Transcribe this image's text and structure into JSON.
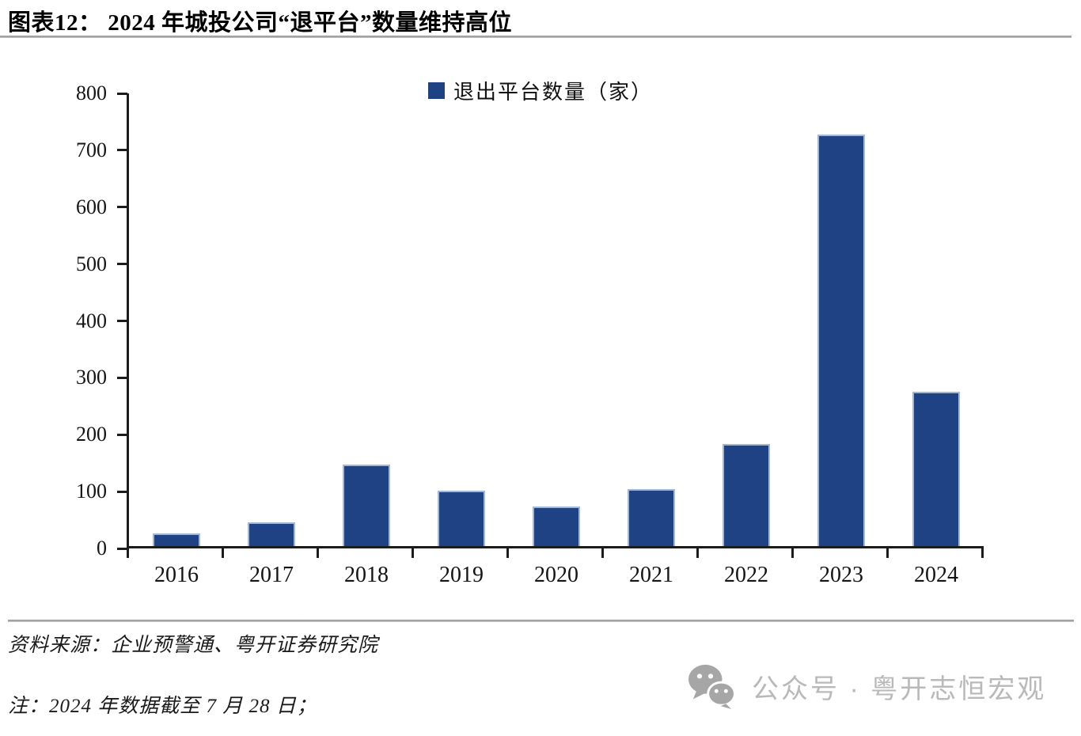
{
  "page": {
    "title": "图表12： 2024 年城投公司“退平台”数量维持高位",
    "source_line": "资料来源：企业预警通、粤开证券研究院",
    "note_line": "注：2024 年数据截至 7 月 28 日；",
    "watermark": {
      "icon": "wechat-icon",
      "text": "公众号 · 粤开志恒宏观"
    }
  },
  "chart_data": {
    "type": "bar",
    "title": "",
    "xlabel": "",
    "ylabel": "",
    "categories": [
      "2016",
      "2017",
      "2018",
      "2019",
      "2020",
      "2021",
      "2022",
      "2023",
      "2024"
    ],
    "series": [
      {
        "name": "退出平台数量（家）",
        "values": [
          22,
          42,
          143,
          97,
          70,
          100,
          180,
          723,
          271
        ]
      }
    ],
    "ylim": [
      0,
      800
    ],
    "yticks": [
      0,
      100,
      200,
      300,
      400,
      500,
      600,
      700,
      800
    ],
    "grid": false,
    "legend_position": "top-center",
    "bar_color": "#1f4285",
    "axis_color": "#1c1c1c"
  }
}
